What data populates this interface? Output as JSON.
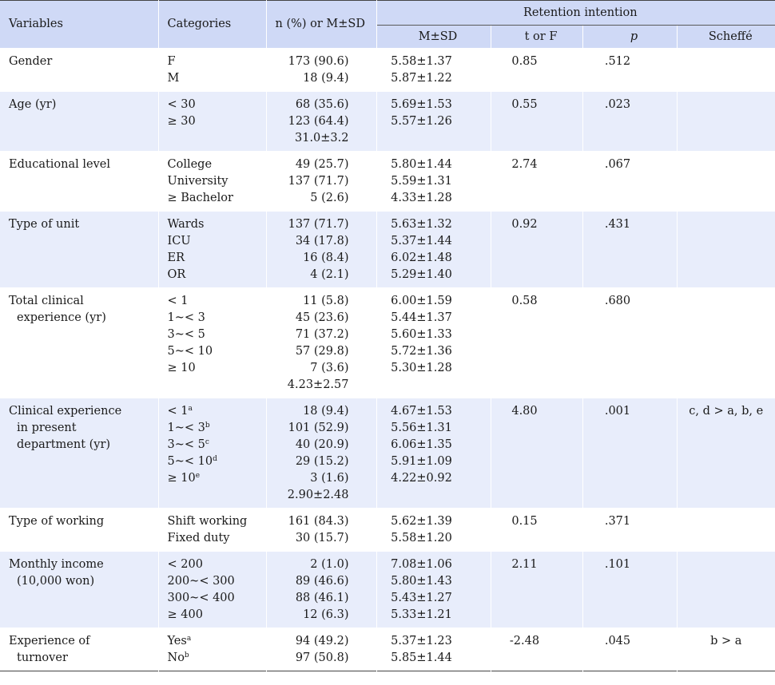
{
  "header": {
    "variables": "Variables",
    "categories": "Categories",
    "n_or_msd": "n (%) or M±SD",
    "retention": "Retention intention",
    "msd": "M±SD",
    "t_or_f": "t or F",
    "p": "p",
    "scheffe": "Scheffé"
  },
  "rows": [
    {
      "variable": [
        "Gender"
      ],
      "categories": [
        {
          "label": "F"
        },
        {
          "label": "M"
        }
      ],
      "n": [
        "173 (90.6)",
        "18 (9.4)"
      ],
      "msd": [
        "5.58±1.37",
        "5.87±1.22"
      ],
      "t": "0.85",
      "p": ".512",
      "scheffe": ""
    },
    {
      "variable": [
        "Age (yr)"
      ],
      "categories": [
        {
          "label": "< 30"
        },
        {
          "label": "≥ 30"
        }
      ],
      "n": [
        "68 (35.6)",
        "123 (64.4)",
        "31.0±3.2"
      ],
      "msd": [
        "5.69±1.53",
        "5.57±1.26"
      ],
      "t": "0.55",
      "p": ".023",
      "scheffe": ""
    },
    {
      "variable": [
        "Educational level"
      ],
      "categories": [
        {
          "label": "College"
        },
        {
          "label": "University"
        },
        {
          "label": "≥ Bachelor"
        }
      ],
      "n": [
        "49 (25.7)",
        "137 (71.7)",
        "5 (2.6)"
      ],
      "msd": [
        "5.80±1.44",
        "5.59±1.31",
        "4.33±1.28"
      ],
      "t": "2.74",
      "p": ".067",
      "scheffe": ""
    },
    {
      "variable": [
        "Type of unit"
      ],
      "categories": [
        {
          "label": "Wards"
        },
        {
          "label": "ICU"
        },
        {
          "label": "ER"
        },
        {
          "label": "OR"
        }
      ],
      "n": [
        "137 (71.7)",
        "34 (17.8)",
        "16 (8.4)",
        "4 (2.1)"
      ],
      "msd": [
        "5.63±1.32",
        "5.37±1.44",
        "6.02±1.48",
        "5.29±1.40"
      ],
      "t": "0.92",
      "p": ".431",
      "scheffe": ""
    },
    {
      "variable": [
        "Total clinical",
        "experience (yr)"
      ],
      "categories": [
        {
          "label": "< 1"
        },
        {
          "label": "1~< 3"
        },
        {
          "label": "3~< 5"
        },
        {
          "label": "5~< 10"
        },
        {
          "label": "≥ 10"
        }
      ],
      "n": [
        "11 (5.8)",
        "45 (23.6)",
        "71 (37.2)",
        "57 (29.8)",
        "7 (3.6)",
        "4.23±2.57"
      ],
      "msd": [
        "6.00±1.59",
        "5.44±1.37",
        "5.60±1.33",
        "5.72±1.36",
        "5.30±1.28"
      ],
      "t": "0.58",
      "p": ".680",
      "scheffe": ""
    },
    {
      "variable": [
        "Clinical experience",
        "in present",
        "department (yr)"
      ],
      "categories": [
        {
          "label": "< 1",
          "sup": "a"
        },
        {
          "label": "1~< 3",
          "sup": "b"
        },
        {
          "label": "3~< 5",
          "sup": "c"
        },
        {
          "label": "5~< 10",
          "sup": "d"
        },
        {
          "label": "≥ 10",
          "sup": "e"
        }
      ],
      "n": [
        "18 (9.4)",
        "101 (52.9)",
        "40 (20.9)",
        "29 (15.2)",
        "3 (1.6)",
        "2.90±2.48"
      ],
      "msd": [
        "4.67±1.53",
        "5.56±1.31",
        "6.06±1.35",
        "5.91±1.09",
        "4.22±0.92"
      ],
      "t": "4.80",
      "p": ".001",
      "scheffe": "c, d > a, b, e"
    },
    {
      "variable": [
        "Type of working"
      ],
      "categories": [
        {
          "label": "Shift working"
        },
        {
          "label": "Fixed duty"
        }
      ],
      "n": [
        "161 (84.3)",
        "30 (15.7)"
      ],
      "msd": [
        "5.62±1.39",
        "5.58±1.20"
      ],
      "t": "0.15",
      "p": ".371",
      "scheffe": ""
    },
    {
      "variable": [
        "Monthly income",
        "(10,000 won)"
      ],
      "categories": [
        {
          "label": "< 200"
        },
        {
          "label": "200~< 300"
        },
        {
          "label": "300~< 400"
        },
        {
          "label": "≥ 400"
        }
      ],
      "n": [
        "2 (1.0)",
        "89 (46.6)",
        "88 (46.1)",
        "12 (6.3)"
      ],
      "msd": [
        "7.08±1.06",
        "5.80±1.43",
        "5.43±1.27",
        "5.33±1.21"
      ],
      "t": "2.11",
      "p": ".101",
      "scheffe": ""
    },
    {
      "variable": [
        "Experience of",
        "turnover"
      ],
      "categories": [
        {
          "label": "Yes",
          "sup": "a"
        },
        {
          "label": "No",
          "sup": "b"
        }
      ],
      "n": [
        "94 (49.2)",
        "97 (50.8)"
      ],
      "msd": [
        "5.37±1.23",
        "5.85±1.44"
      ],
      "t": "-2.48",
      "p": ".045",
      "scheffe": "b > a"
    }
  ]
}
